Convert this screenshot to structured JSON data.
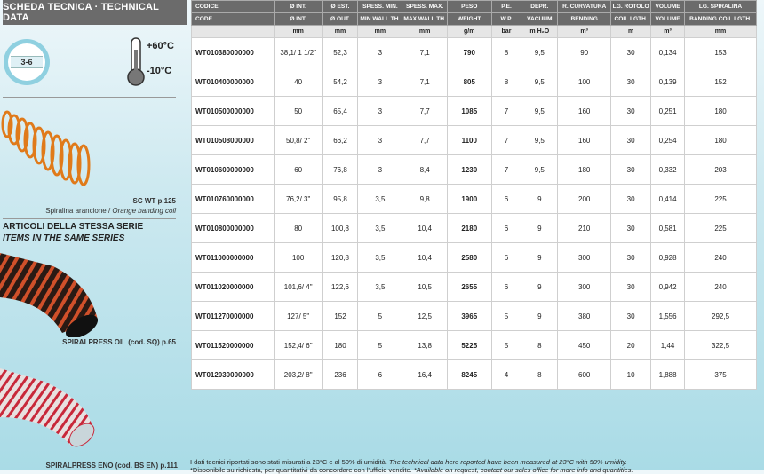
{
  "left": {
    "title": "SCHEDA TECNICA · TECHNICAL DATA",
    "pressure_badge": "3-6",
    "temp_max": "+60°C",
    "temp_min": "-10°C",
    "coil_code": "SC WT p.125",
    "coil_desc_it": "Spiralina arancione / ",
    "coil_desc_en": "Orange banding coil",
    "series_it": "ARTICOLI DELLA STESSA SERIE",
    "series_en": "ITEMS IN THE SAME SERIES",
    "product1": "SPIRALPRESS OIL (cod. SQ) p.65",
    "product2": "SPIRALPRESS ENO (cod. BS EN) p.111",
    "colors": {
      "orange": "#e07a1a",
      "red": "#c8283a",
      "header": "#6b6b6b"
    }
  },
  "table": {
    "header_it": [
      "CODICE",
      "Ø INT.",
      "Ø EST.",
      "SPESS. MIN.",
      "SPESS. MAX.",
      "PESO",
      "P.E.",
      "DEPR.",
      "R. CURVATURA",
      "LG. ROTOLO",
      "VOLUME",
      "LG. SPIRALINA"
    ],
    "header_en": [
      "CODE",
      "Ø INT.",
      "Ø OUT.",
      "MIN WALL TH.",
      "MAX WALL TH.",
      "WEIGHT",
      "W.P.",
      "VACUUM",
      "BENDING",
      "COIL LGTH.",
      "VOLUME",
      "BANDING COIL LGTH."
    ],
    "units": [
      "",
      "mm",
      "mm",
      "mm",
      "mm",
      "g/m",
      "bar",
      "m H₂O",
      "m³",
      "m",
      "m³",
      "mm"
    ],
    "rows": [
      [
        "WT010380000000",
        "38,1/ 1 1/2\"",
        "52,3",
        "3",
        "7,1",
        "790",
        "8",
        "9,5",
        "90",
        "30",
        "0,134",
        "153"
      ],
      [
        "WT010400000000",
        "40",
        "54,2",
        "3",
        "7,1",
        "805",
        "8",
        "9,5",
        "100",
        "30",
        "0,139",
        "152"
      ],
      [
        "WT010500000000",
        "50",
        "65,4",
        "3",
        "7,7",
        "1085",
        "7",
        "9,5",
        "160",
        "30",
        "0,251",
        "180"
      ],
      [
        "WT010508000000",
        "50,8/ 2\"",
        "66,2",
        "3",
        "7,7",
        "1100",
        "7",
        "9,5",
        "160",
        "30",
        "0,254",
        "180"
      ],
      [
        "WT010600000000",
        "60",
        "76,8",
        "3",
        "8,4",
        "1230",
        "7",
        "9,5",
        "180",
        "30",
        "0,332",
        "203"
      ],
      [
        "WT010760000000",
        "76,2/ 3\"",
        "95,8",
        "3,5",
        "9,8",
        "1900",
        "6",
        "9",
        "200",
        "30",
        "0,414",
        "225"
      ],
      [
        "WT010800000000",
        "80",
        "100,8",
        "3,5",
        "10,4",
        "2180",
        "6",
        "9",
        "210",
        "30",
        "0,581",
        "225"
      ],
      [
        "WT011000000000",
        "100",
        "120,8",
        "3,5",
        "10,4",
        "2580",
        "6",
        "9",
        "300",
        "30",
        "0,928",
        "240"
      ],
      [
        "WT011020000000",
        "101,6/ 4\"",
        "122,6",
        "3,5",
        "10,5",
        "2655",
        "6",
        "9",
        "300",
        "30",
        "0,942",
        "240"
      ],
      [
        "WT011270000000",
        "127/ 5\"",
        "152",
        "5",
        "12,5",
        "3965",
        "5",
        "9",
        "380",
        "30",
        "1,556",
        "292,5"
      ],
      [
        "WT011520000000",
        "152,4/ 6\"",
        "180",
        "5",
        "13,8",
        "5225",
        "5",
        "8",
        "450",
        "20",
        "1,44",
        "322,5"
      ],
      [
        "WT012030000000",
        "203,2/ 8\"",
        "236",
        "6",
        "16,4",
        "8245",
        "4",
        "8",
        "600",
        "10",
        "1,888",
        "375"
      ]
    ]
  },
  "notes": {
    "line1_it": "I dati tecnici riportati sono stati misurati a 23°C e al 50% di umidità. ",
    "line1_en": "The technical data here reported have been measured at 23°C with 50% umidity.",
    "line2_it": "*Disponibile su richiesta, per quantitativi da concordare con l'ufficio vendite. ",
    "line2_en": "*Available on request, contact our sales office for more info and quantities."
  }
}
